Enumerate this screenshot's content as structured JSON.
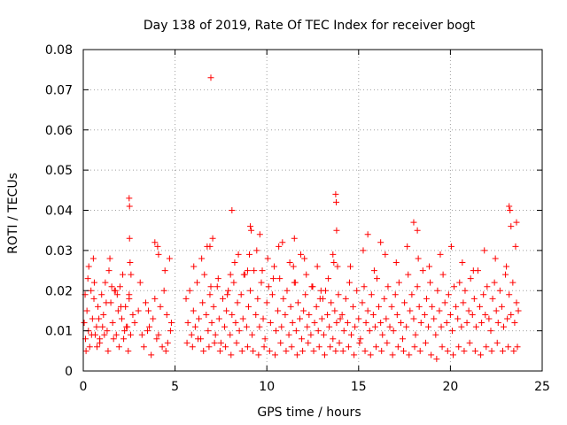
{
  "chart_data": {
    "type": "scatter",
    "title": "Day 138 of 2019, Rate Of TEC Index for receiver bogt",
    "xlabel": "GPS time / hours",
    "ylabel": "ROTI / TECUs",
    "xlim": [
      0,
      25
    ],
    "ylim": [
      0,
      0.08
    ],
    "xticks": [
      0,
      5,
      10,
      15,
      20,
      25
    ],
    "xtick_labels": [
      "0",
      "5",
      "10",
      "15",
      "20",
      "25"
    ],
    "yticks": [
      0,
      0.01,
      0.02,
      0.03,
      0.04,
      0.05,
      0.06,
      0.07,
      0.08
    ],
    "ytick_labels": [
      "0",
      "0.01",
      "0.02",
      "0.03",
      "0.04",
      "0.05",
      "0.06",
      "0.07",
      "0.08"
    ],
    "grid": true,
    "marker": "+",
    "color": "#ff0000",
    "series": [
      {
        "name": "ROTI",
        "x": [
          0.05,
          0.12,
          0.2,
          0.28,
          0.35,
          0.42,
          0.5,
          0.58,
          0.65,
          0.72,
          0.8,
          0.9,
          1.0,
          1.1,
          1.2,
          1.3,
          1.4,
          1.5,
          1.6,
          1.7,
          1.8,
          1.9,
          2.0,
          2.1,
          2.2,
          2.3,
          2.4,
          2.5,
          2.6,
          2.8,
          3.0,
          3.2,
          3.4,
          3.6,
          3.8,
          4.0,
          4.2,
          4.4,
          4.6,
          4.8,
          0.1,
          0.3,
          0.6,
          0.9,
          1.25,
          1.45,
          1.75,
          2.05,
          2.35,
          2.55,
          2.7,
          3.1,
          3.5,
          3.9,
          4.3,
          4.55,
          0.15,
          0.45,
          0.75,
          1.05,
          1.35,
          1.65,
          1.95,
          2.25,
          2.45,
          2.58,
          3.3,
          3.7,
          4.1,
          4.5,
          4.75,
          0.25,
          0.55,
          0.85,
          1.15,
          1.55,
          1.85,
          2.15,
          2.5,
          2.52,
          3.55,
          4.05,
          4.45,
          4.7,
          5.6,
          5.7,
          5.8,
          5.9,
          6.0,
          6.1,
          6.2,
          6.3,
          6.4,
          6.5,
          6.6,
          6.7,
          6.8,
          6.9,
          7.0,
          7.1,
          7.2,
          7.3,
          7.4,
          7.5,
          7.6,
          7.7,
          7.8,
          7.9,
          8.0,
          8.1,
          8.2,
          8.3,
          8.4,
          8.5,
          8.6,
          8.7,
          8.8,
          8.9,
          9.0,
          9.1,
          9.2,
          9.3,
          9.4,
          9.5,
          9.6,
          9.7,
          9.8,
          9.9,
          10.0,
          10.1,
          10.2,
          10.3,
          10.4,
          10.5,
          10.6,
          10.7,
          10.8,
          10.9,
          11.0,
          11.1,
          11.2,
          11.3,
          11.4,
          11.5,
          11.6,
          11.7,
          11.8,
          11.9,
          12.0,
          12.1,
          12.2,
          12.3,
          12.4,
          12.5,
          12.6,
          12.7,
          12.8,
          12.9,
          13.0,
          13.1,
          13.2,
          13.3,
          13.4,
          13.5,
          13.6,
          13.7,
          13.8,
          13.9,
          14.0,
          5.65,
          5.95,
          6.25,
          6.55,
          6.85,
          7.15,
          7.45,
          7.75,
          8.05,
          8.35,
          8.65,
          8.95,
          9.25,
          9.55,
          9.85,
          10.15,
          10.45,
          10.75,
          11.05,
          11.35,
          11.65,
          11.95,
          12.25,
          12.55,
          12.85,
          13.15,
          13.45,
          13.75,
          13.95,
          6.02,
          6.45,
          6.95,
          7.35,
          7.85,
          8.25,
          8.75,
          9.05,
          9.45,
          9.75,
          10.05,
          10.35,
          10.65,
          11.25,
          11.55,
          11.85,
          12.15,
          12.45,
          12.75,
          13.05,
          13.35,
          13.65,
          6.75,
          7.05,
          8.02,
          8.45,
          8.95,
          9.62,
          10.85,
          11.45,
          12.05,
          12.95,
          13.85,
          14.1,
          14.2,
          14.3,
          14.4,
          14.5,
          14.6,
          14.7,
          14.8,
          14.9,
          15.0,
          15.1,
          15.2,
          15.3,
          15.4,
          15.5,
          15.6,
          15.7,
          15.8,
          15.9,
          16.0,
          16.1,
          16.2,
          16.3,
          16.4,
          16.5,
          16.6,
          16.7,
          16.8,
          16.9,
          17.0,
          17.1,
          17.2,
          17.3,
          17.4,
          17.5,
          17.6,
          17.7,
          17.8,
          17.9,
          18.0,
          18.1,
          18.2,
          18.3,
          18.4,
          18.5,
          18.6,
          18.7,
          18.8,
          18.9,
          19.0,
          19.1,
          19.2,
          19.3,
          19.4,
          19.5,
          19.6,
          19.7,
          19.8,
          19.9,
          20.0,
          20.1,
          20.2,
          20.3,
          20.4,
          20.5,
          20.6,
          20.7,
          20.8,
          20.9,
          21.0,
          21.1,
          21.2,
          21.3,
          21.4,
          21.5,
          21.6,
          21.7,
          21.8,
          21.9,
          22.0,
          22.1,
          22.2,
          22.3,
          22.4,
          22.5,
          22.6,
          22.7,
          22.8,
          22.9,
          23.0,
          23.1,
          23.2,
          23.3,
          23.4,
          23.5,
          23.6,
          23.7,
          14.15,
          14.45,
          14.75,
          15.05,
          15.35,
          15.65,
          15.95,
          16.25,
          16.55,
          16.85,
          17.15,
          17.45,
          17.75,
          18.05,
          18.35,
          18.65,
          18.95,
          19.25,
          19.55,
          19.85,
          20.15,
          20.45,
          20.75,
          21.05,
          21.35,
          21.65,
          21.95,
          22.25,
          22.55,
          22.85,
          23.15,
          23.45,
          23.65,
          14.55,
          15.25,
          15.85,
          16.45,
          17.05,
          17.65,
          18.25,
          18.85,
          19.45,
          20.05,
          20.65,
          21.25,
          21.85,
          22.45,
          23.05,
          23.55,
          6.95,
          2.5,
          2.52,
          8.1,
          13.75,
          13.78,
          13.8,
          23.2,
          23.25,
          23.3,
          9.1,
          9.15,
          11.5,
          15.5,
          18.0,
          18.2,
          23.6,
          3.9,
          4.1,
          6.9,
          13.6,
          16.2
        ],
        "y": [
          0.012,
          0.008,
          0.015,
          0.01,
          0.006,
          0.02,
          0.013,
          0.018,
          0.009,
          0.011,
          0.016,
          0.007,
          0.019,
          0.014,
          0.022,
          0.01,
          0.025,
          0.017,
          0.012,
          0.02,
          0.009,
          0.015,
          0.021,
          0.013,
          0.008,
          0.016,
          0.011,
          0.018,
          0.024,
          0.012,
          0.015,
          0.009,
          0.017,
          0.011,
          0.013,
          0.008,
          0.016,
          0.02,
          0.007,
          0.012,
          0.019,
          0.026,
          0.022,
          0.008,
          0.017,
          0.028,
          0.02,
          0.016,
          0.011,
          0.027,
          0.014,
          0.022,
          0.01,
          0.018,
          0.006,
          0.014,
          0.005,
          0.009,
          0.006,
          0.011,
          0.005,
          0.008,
          0.006,
          0.01,
          0.005,
          0.009,
          0.006,
          0.004,
          0.009,
          0.005,
          0.01,
          0.023,
          0.028,
          0.013,
          0.009,
          0.021,
          0.019,
          0.024,
          0.019,
          0.033,
          0.015,
          0.031,
          0.025,
          0.028,
          0.018,
          0.012,
          0.02,
          0.009,
          0.015,
          0.011,
          0.022,
          0.013,
          0.008,
          0.017,
          0.024,
          0.014,
          0.01,
          0.019,
          0.012,
          0.016,
          0.009,
          0.021,
          0.013,
          0.007,
          0.018,
          0.011,
          0.015,
          0.02,
          0.009,
          0.014,
          0.022,
          0.012,
          0.017,
          0.01,
          0.019,
          0.013,
          0.024,
          0.011,
          0.016,
          0.02,
          0.009,
          0.025,
          0.014,
          0.018,
          0.011,
          0.022,
          0.013,
          0.008,
          0.017,
          0.021,
          0.012,
          0.019,
          0.026,
          0.01,
          0.015,
          0.023,
          0.011,
          0.018,
          0.014,
          0.02,
          0.009,
          0.016,
          0.012,
          0.022,
          0.01,
          0.017,
          0.013,
          0.008,
          0.015,
          0.019,
          0.011,
          0.014,
          0.009,
          0.021,
          0.012,
          0.016,
          0.01,
          0.018,
          0.013,
          0.009,
          0.02,
          0.014,
          0.011,
          0.017,
          0.008,
          0.015,
          0.012,
          0.019,
          0.013,
          0.007,
          0.006,
          0.008,
          0.005,
          0.006,
          0.007,
          0.005,
          0.006,
          0.004,
          0.007,
          0.005,
          0.006,
          0.005,
          0.004,
          0.006,
          0.005,
          0.004,
          0.007,
          0.005,
          0.006,
          0.004,
          0.005,
          0.007,
          0.005,
          0.006,
          0.004,
          0.006,
          0.005,
          0.007,
          0.026,
          0.028,
          0.021,
          0.023,
          0.019,
          0.027,
          0.024,
          0.029,
          0.03,
          0.025,
          0.028,
          0.023,
          0.031,
          0.027,
          0.022,
          0.029,
          0.024,
          0.021,
          0.026,
          0.018,
          0.023,
          0.027,
          0.031,
          0.033,
          0.024,
          0.029,
          0.025,
          0.034,
          0.032,
          0.026,
          0.028,
          0.02,
          0.026,
          0.014,
          0.01,
          0.018,
          0.012,
          0.022,
          0.009,
          0.016,
          0.011,
          0.02,
          0.013,
          0.008,
          0.017,
          0.021,
          0.012,
          0.015,
          0.01,
          0.019,
          0.014,
          0.011,
          0.023,
          0.016,
          0.012,
          0.009,
          0.018,
          0.013,
          0.021,
          0.011,
          0.016,
          0.01,
          0.019,
          0.014,
          0.022,
          0.012,
          0.008,
          0.017,
          0.011,
          0.024,
          0.015,
          0.019,
          0.013,
          0.009,
          0.021,
          0.016,
          0.012,
          0.025,
          0.014,
          0.018,
          0.011,
          0.022,
          0.016,
          0.013,
          0.009,
          0.02,
          0.015,
          0.011,
          0.024,
          0.017,
          0.012,
          0.019,
          0.014,
          0.01,
          0.021,
          0.016,
          0.013,
          0.022,
          0.011,
          0.017,
          0.02,
          0.012,
          0.015,
          0.023,
          0.014,
          0.018,
          0.011,
          0.025,
          0.016,
          0.012,
          0.019,
          0.014,
          0.021,
          0.013,
          0.01,
          0.018,
          0.022,
          0.015,
          0.012,
          0.02,
          0.016,
          0.011,
          0.024,
          0.013,
          0.019,
          0.014,
          0.022,
          0.012,
          0.017,
          0.015,
          0.005,
          0.006,
          0.004,
          0.007,
          0.005,
          0.004,
          0.006,
          0.005,
          0.007,
          0.004,
          0.006,
          0.005,
          0.004,
          0.006,
          0.005,
          0.007,
          0.004,
          0.003,
          0.006,
          0.005,
          0.004,
          0.006,
          0.005,
          0.007,
          0.005,
          0.004,
          0.006,
          0.005,
          0.007,
          0.005,
          0.006,
          0.005,
          0.006,
          0.026,
          0.03,
          0.025,
          0.029,
          0.027,
          0.031,
          0.028,
          0.026,
          0.029,
          0.031,
          0.027,
          0.025,
          0.03,
          0.028,
          0.026,
          0.031,
          0.073,
          0.043,
          0.041,
          0.04,
          0.044,
          0.042,
          0.035,
          0.041,
          0.04,
          0.036,
          0.036,
          0.035,
          0.033,
          0.034,
          0.037,
          0.035,
          0.037,
          0.032,
          0.029,
          0.031,
          0.029,
          0.032
        ]
      }
    ]
  }
}
